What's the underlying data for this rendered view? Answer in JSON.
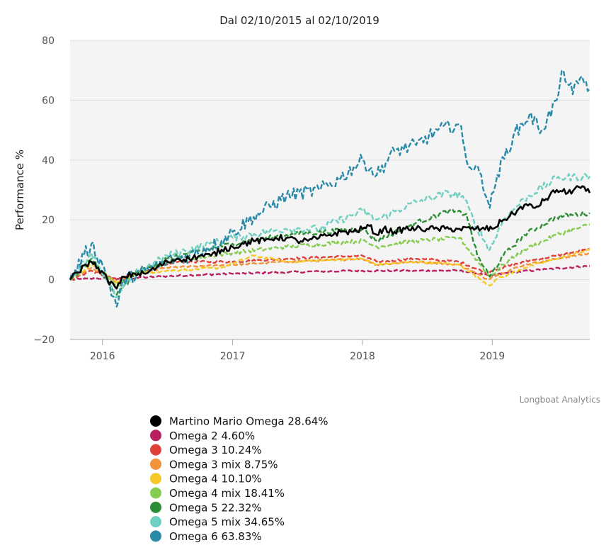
{
  "chart_data": {
    "type": "line",
    "title": "Dal 02/10/2015 al 02/10/2019",
    "xlabel": "",
    "ylabel": "Performance %",
    "xlim": [
      "2015-10-02",
      "2019-10-02"
    ],
    "ylim": [
      -20,
      80
    ],
    "yticks": [
      -20,
      0,
      20,
      40,
      60,
      80
    ],
    "xticks": [
      {
        "date": "2016-01-01",
        "label": "2016"
      },
      {
        "date": "2017-01-01",
        "label": "2017"
      },
      {
        "date": "2018-01-01",
        "label": "2018"
      },
      {
        "date": "2019-01-01",
        "label": "2019"
      }
    ],
    "grid": true,
    "legend_position": "bottom",
    "credits": "Longboat Analytics",
    "series": [
      {
        "name": "Martino Mario Omega 28.64%",
        "color": "#000000",
        "style": "solid",
        "points": [
          [
            "2015-10-02",
            0
          ],
          [
            "2015-11-15",
            5
          ],
          [
            "2015-12-01",
            6
          ],
          [
            "2015-12-20",
            4
          ],
          [
            "2016-01-15",
            0
          ],
          [
            "2016-02-10",
            -3
          ],
          [
            "2016-03-01",
            1
          ],
          [
            "2016-04-01",
            2
          ],
          [
            "2016-05-01",
            2
          ],
          [
            "2016-06-01",
            4
          ],
          [
            "2016-07-01",
            6
          ],
          [
            "2016-08-01",
            7
          ],
          [
            "2016-09-01",
            7
          ],
          [
            "2016-10-01",
            8
          ],
          [
            "2016-11-01",
            8
          ],
          [
            "2016-12-01",
            10
          ],
          [
            "2017-01-01",
            11
          ],
          [
            "2017-02-01",
            12
          ],
          [
            "2017-03-01",
            13
          ],
          [
            "2017-04-01",
            13
          ],
          [
            "2017-05-01",
            14
          ],
          [
            "2017-06-01",
            14
          ],
          [
            "2017-07-01",
            13
          ],
          [
            "2017-08-01",
            13
          ],
          [
            "2017-09-01",
            14
          ],
          [
            "2017-10-01",
            15
          ],
          [
            "2017-11-01",
            16
          ],
          [
            "2017-12-01",
            16
          ],
          [
            "2018-01-01",
            17
          ],
          [
            "2018-01-20",
            18
          ],
          [
            "2018-02-10",
            15
          ],
          [
            "2018-03-01",
            17
          ],
          [
            "2018-04-01",
            16
          ],
          [
            "2018-05-01",
            17
          ],
          [
            "2018-06-01",
            17
          ],
          [
            "2018-07-01",
            17
          ],
          [
            "2018-08-01",
            17
          ],
          [
            "2018-09-01",
            17
          ],
          [
            "2018-10-01",
            17
          ],
          [
            "2018-11-01",
            17
          ],
          [
            "2018-12-01",
            17
          ],
          [
            "2019-01-01",
            17
          ],
          [
            "2019-02-01",
            20
          ],
          [
            "2019-03-01",
            22
          ],
          [
            "2019-04-01",
            25
          ],
          [
            "2019-05-01",
            24
          ],
          [
            "2019-06-01",
            27
          ],
          [
            "2019-07-01",
            30
          ],
          [
            "2019-08-01",
            29
          ],
          [
            "2019-09-01",
            31
          ],
          [
            "2019-10-02",
            29
          ]
        ]
      },
      {
        "name": "Omega 2 4.60%",
        "color": "#b8205e",
        "style": "dashed",
        "points": [
          [
            "2015-10-02",
            0
          ],
          [
            "2016-01-01",
            0.5
          ],
          [
            "2016-03-01",
            0.3
          ],
          [
            "2016-06-01",
            1
          ],
          [
            "2016-09-01",
            1.5
          ],
          [
            "2017-01-01",
            2
          ],
          [
            "2017-06-01",
            2.5
          ],
          [
            "2018-01-01",
            3
          ],
          [
            "2018-06-01",
            3
          ],
          [
            "2018-10-01",
            3
          ],
          [
            "2018-12-20",
            1.5
          ],
          [
            "2019-01-01",
            1.5
          ],
          [
            "2019-03-01",
            2.5
          ],
          [
            "2019-06-01",
            3.5
          ],
          [
            "2019-10-02",
            4.6
          ]
        ]
      },
      {
        "name": "Omega 3 10.24%",
        "color": "#e0403a",
        "style": "dashed",
        "points": [
          [
            "2015-10-02",
            0
          ],
          [
            "2015-12-01",
            3
          ],
          [
            "2016-01-15",
            1
          ],
          [
            "2016-02-10",
            0
          ],
          [
            "2016-04-01",
            2
          ],
          [
            "2016-06-01",
            4
          ],
          [
            "2016-08-01",
            6
          ],
          [
            "2017-01-01",
            6
          ],
          [
            "2017-06-01",
            7
          ],
          [
            "2018-01-01",
            8
          ],
          [
            "2018-02-10",
            6
          ],
          [
            "2018-06-01",
            7
          ],
          [
            "2018-10-01",
            6
          ],
          [
            "2018-12-20",
            2
          ],
          [
            "2019-01-01",
            3
          ],
          [
            "2019-04-01",
            6
          ],
          [
            "2019-07-01",
            8
          ],
          [
            "2019-10-02",
            10.2
          ]
        ]
      },
      {
        "name": "Omega 3 mix 8.75%",
        "color": "#f2923a",
        "style": "dashed",
        "points": [
          [
            "2015-10-02",
            0
          ],
          [
            "2015-12-01",
            4
          ],
          [
            "2016-02-10",
            -1
          ],
          [
            "2016-04-01",
            2
          ],
          [
            "2016-07-01",
            4
          ],
          [
            "2017-01-01",
            5
          ],
          [
            "2017-06-01",
            6
          ],
          [
            "2018-01-01",
            7
          ],
          [
            "2018-02-10",
            5
          ],
          [
            "2018-06-01",
            6
          ],
          [
            "2018-10-01",
            5
          ],
          [
            "2018-12-20",
            0
          ],
          [
            "2019-01-01",
            1
          ],
          [
            "2019-04-01",
            5
          ],
          [
            "2019-07-01",
            7
          ],
          [
            "2019-10-02",
            8.75
          ]
        ]
      },
      {
        "name": "Omega 4 10.10%",
        "color": "#f5c92a",
        "style": "dashed",
        "points": [
          [
            "2015-10-02",
            0
          ],
          [
            "2015-12-01",
            5
          ],
          [
            "2016-02-10",
            -1
          ],
          [
            "2016-04-01",
            2
          ],
          [
            "2016-07-01",
            3
          ],
          [
            "2016-12-01",
            4
          ],
          [
            "2017-03-01",
            8
          ],
          [
            "2017-06-01",
            6
          ],
          [
            "2018-01-01",
            7
          ],
          [
            "2018-02-10",
            5
          ],
          [
            "2018-06-01",
            6
          ],
          [
            "2018-10-01",
            5
          ],
          [
            "2018-12-25",
            -2
          ],
          [
            "2019-01-10",
            0
          ],
          [
            "2019-04-01",
            4
          ],
          [
            "2019-07-01",
            7
          ],
          [
            "2019-10-02",
            10.1
          ]
        ]
      },
      {
        "name": "Omega 4 mix 18.41%",
        "color": "#86cc50",
        "style": "dashed",
        "points": [
          [
            "2015-10-02",
            0
          ],
          [
            "2015-12-01",
            6
          ],
          [
            "2016-02-10",
            -2
          ],
          [
            "2016-04-01",
            2
          ],
          [
            "2016-07-01",
            6
          ],
          [
            "2017-01-01",
            9
          ],
          [
            "2017-06-01",
            11
          ],
          [
            "2018-01-01",
            13
          ],
          [
            "2018-02-10",
            11
          ],
          [
            "2018-06-01",
            13
          ],
          [
            "2018-10-01",
            14
          ],
          [
            "2018-12-25",
            1
          ],
          [
            "2019-02-01",
            5
          ],
          [
            "2019-04-01",
            10
          ],
          [
            "2019-07-01",
            15
          ],
          [
            "2019-10-02",
            18.4
          ]
        ]
      },
      {
        "name": "Omega 5 22.32%",
        "color": "#2e8e35",
        "style": "dashed",
        "points": [
          [
            "2015-10-02",
            0
          ],
          [
            "2015-12-01",
            7
          ],
          [
            "2016-02-10",
            -5
          ],
          [
            "2016-04-01",
            2
          ],
          [
            "2016-07-01",
            7
          ],
          [
            "2017-01-01",
            12
          ],
          [
            "2017-06-01",
            15
          ],
          [
            "2018-01-01",
            17
          ],
          [
            "2018-02-10",
            13
          ],
          [
            "2018-06-01",
            19
          ],
          [
            "2018-09-01",
            23
          ],
          [
            "2018-10-20",
            22
          ],
          [
            "2018-11-20",
            8
          ],
          [
            "2018-12-25",
            1
          ],
          [
            "2019-02-01",
            8
          ],
          [
            "2019-04-01",
            15
          ],
          [
            "2019-07-01",
            21
          ],
          [
            "2019-10-02",
            22.3
          ]
        ]
      },
      {
        "name": "Omega 5 mix 34.65%",
        "color": "#6fcfc0",
        "style": "dashed",
        "points": [
          [
            "2015-10-02",
            0
          ],
          [
            "2015-12-01",
            9
          ],
          [
            "2016-02-10",
            -6
          ],
          [
            "2016-04-01",
            2
          ],
          [
            "2016-07-01",
            8
          ],
          [
            "2017-01-01",
            14
          ],
          [
            "2017-06-01",
            17
          ],
          [
            "2017-09-01",
            17
          ],
          [
            "2018-01-01",
            23
          ],
          [
            "2018-02-10",
            20
          ],
          [
            "2018-06-01",
            26
          ],
          [
            "2018-09-01",
            29
          ],
          [
            "2018-10-10",
            28
          ],
          [
            "2018-11-20",
            17
          ],
          [
            "2018-12-25",
            10
          ],
          [
            "2019-02-01",
            20
          ],
          [
            "2019-04-01",
            27
          ],
          [
            "2019-07-01",
            34
          ],
          [
            "2019-10-02",
            34.6
          ]
        ]
      },
      {
        "name": "Omega 6 63.83%",
        "color": "#2a8ba8",
        "style": "dashed",
        "points": [
          [
            "2015-10-02",
            0
          ],
          [
            "2015-11-10",
            8
          ],
          [
            "2015-12-01",
            12
          ],
          [
            "2016-01-01",
            5
          ],
          [
            "2016-02-10",
            -9
          ],
          [
            "2016-03-01",
            0
          ],
          [
            "2016-05-01",
            3
          ],
          [
            "2016-07-01",
            6
          ],
          [
            "2016-09-01",
            8
          ],
          [
            "2016-12-01",
            13
          ],
          [
            "2017-01-01",
            16
          ],
          [
            "2017-03-01",
            21
          ],
          [
            "2017-06-01",
            28
          ],
          [
            "2017-09-01",
            30
          ],
          [
            "2017-11-01",
            34
          ],
          [
            "2018-01-01",
            40
          ],
          [
            "2018-02-10",
            35
          ],
          [
            "2018-04-01",
            43
          ],
          [
            "2018-06-01",
            45
          ],
          [
            "2018-08-01",
            50
          ],
          [
            "2018-10-01",
            52
          ],
          [
            "2018-10-20",
            40
          ],
          [
            "2018-12-01",
            35
          ],
          [
            "2018-12-25",
            24
          ],
          [
            "2019-01-15",
            35
          ],
          [
            "2019-03-01",
            48
          ],
          [
            "2019-04-15",
            55
          ],
          [
            "2019-05-20",
            50
          ],
          [
            "2019-07-01",
            60
          ],
          [
            "2019-07-20",
            70
          ],
          [
            "2019-08-15",
            62
          ],
          [
            "2019-09-10",
            68
          ],
          [
            "2019-10-02",
            63.8
          ]
        ]
      }
    ]
  }
}
